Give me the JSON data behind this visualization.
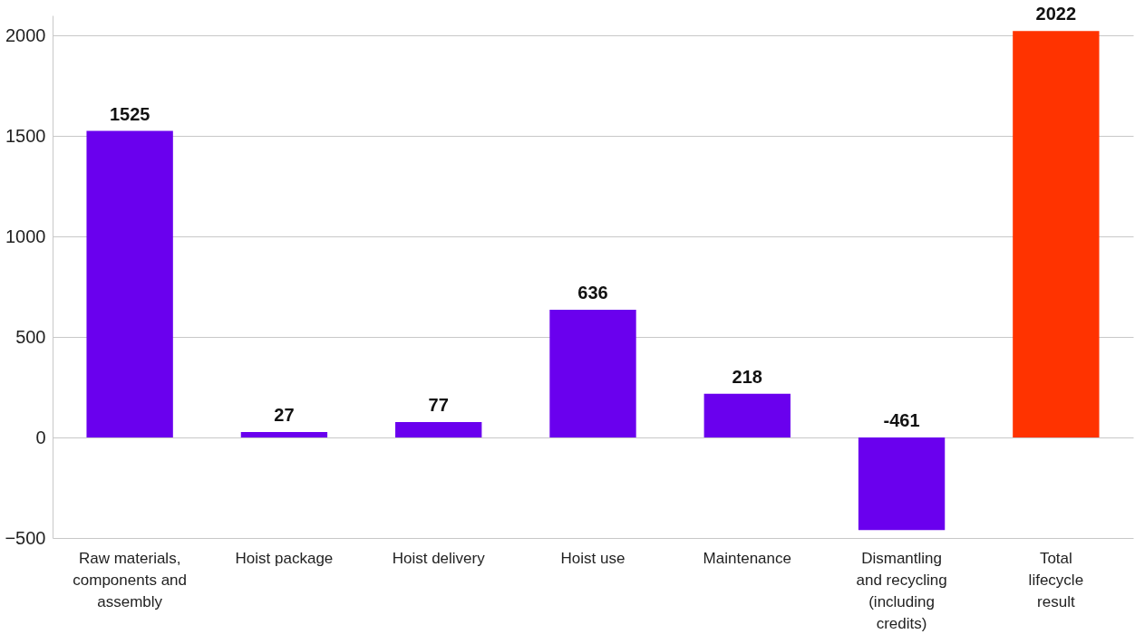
{
  "chart_data": {
    "type": "bar",
    "categories": [
      "Raw materials, components and assembly",
      "Hoist package",
      "Hoist delivery",
      "Hoist use",
      "Maintenance",
      "Dismantling and recycling (including credits)",
      "Total lifecycle result"
    ],
    "values": [
      1525,
      27,
      77,
      636,
      218,
      -461,
      2022
    ],
    "colors": [
      "#6a00ee",
      "#6a00ee",
      "#6a00ee",
      "#6a00ee",
      "#6a00ee",
      "#6a00ee",
      "#ff3300"
    ],
    "ylim": [
      -500,
      2100
    ],
    "yticks": [
      -500,
      0,
      500,
      1000,
      1500,
      2000
    ],
    "grid": "y",
    "data_labels": true
  }
}
